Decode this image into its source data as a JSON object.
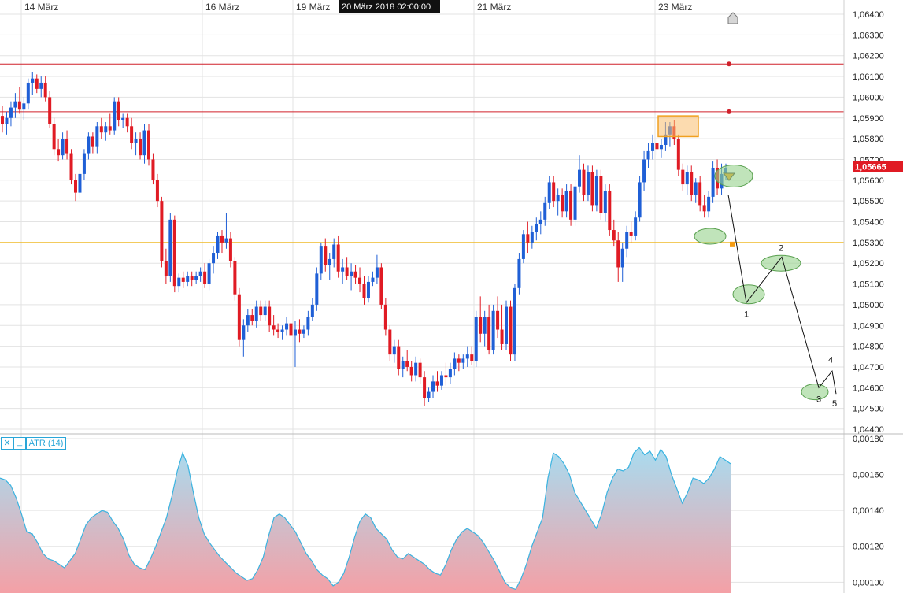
{
  "crosshair_label": "20 März 2018 02:00:00",
  "indicator": {
    "close_glyph": "✕",
    "minimize_glyph": "_",
    "label": "ATR (14)"
  },
  "icons": {
    "home": "home-icon",
    "alert": "alert-bell-icon"
  },
  "colors": {
    "up": "#1f5fd6",
    "down": "#e01b24",
    "grid": "#e3e3e3",
    "hline_red": "#d0202a",
    "hline_orange": "#f0b000",
    "price_tag": "#e01b24",
    "atr_line": "#3ab3e0",
    "atr_fill_top": "#a8dcf0",
    "atr_fill_bottom": "#f4a0a6",
    "wave_fill": "#9fd49a"
  },
  "chart_data": [
    {
      "type": "candlestick",
      "x_labels": [
        "14 März",
        "16 März",
        "19 März",
        "21 März",
        "23 März"
      ],
      "y_ticks": [
        "1,06400",
        "1,06300",
        "1,06200",
        "1,06100",
        "1,06000",
        "1,05900",
        "1,05800",
        "1,05700",
        "1,05600",
        "1,05500",
        "1,05400",
        "1,05300",
        "1,05200",
        "1,05100",
        "1,05000",
        "1,04900",
        "1,04800",
        "1,04700",
        "1,04600",
        "1,04500",
        "1,04400"
      ],
      "ylim": [
        1.044,
        1.064
      ],
      "last_price_label": "1,05665",
      "last_price": 1.05665,
      "horizontal_lines": [
        {
          "price": 1.0616,
          "color": "red"
        },
        {
          "price": 1.0593,
          "color": "red"
        },
        {
          "price": 1.053,
          "color": "orange"
        }
      ],
      "wave_labels": [
        "1",
        "2",
        "3",
        "4",
        "5"
      ],
      "ohlc": [
        [
          1.0591,
          1.0596,
          1.0583,
          1.0587
        ],
        [
          1.0587,
          1.0593,
          1.0582,
          1.059
        ],
        [
          1.059,
          1.0598,
          1.0586,
          1.0595
        ],
        [
          1.0595,
          1.0602,
          1.059,
          1.0598
        ],
        [
          1.0598,
          1.0605,
          1.0592,
          1.0594
        ],
        [
          1.0594,
          1.06,
          1.0589,
          1.0597
        ],
        [
          1.0597,
          1.0609,
          1.0594,
          1.0607
        ],
        [
          1.0607,
          1.0612,
          1.0601,
          1.0609
        ],
        [
          1.0609,
          1.0611,
          1.0602,
          1.0604
        ],
        [
          1.0604,
          1.061,
          1.06,
          1.0607
        ],
        [
          1.0607,
          1.061,
          1.0598,
          1.06
        ],
        [
          1.06,
          1.0603,
          1.0585,
          1.0587
        ],
        [
          1.0587,
          1.059,
          1.0572,
          1.0575
        ],
        [
          1.0575,
          1.058,
          1.0569,
          1.0572
        ],
        [
          1.0572,
          1.0583,
          1.057,
          1.058
        ],
        [
          1.058,
          1.0584,
          1.057,
          1.0573
        ],
        [
          1.0573,
          1.0575,
          1.0558,
          1.056
        ],
        [
          1.056,
          1.0563,
          1.055,
          1.0554
        ],
        [
          1.0554,
          1.0565,
          1.0551,
          1.0563
        ],
        [
          1.0563,
          1.0575,
          1.056,
          1.0573
        ],
        [
          1.0573,
          1.0583,
          1.057,
          1.0581
        ],
        [
          1.0581,
          1.0583,
          1.0573,
          1.0576
        ],
        [
          1.0576,
          1.0588,
          1.0573,
          1.0586
        ],
        [
          1.0586,
          1.059,
          1.058,
          1.0583
        ],
        [
          1.0583,
          1.0588,
          1.0579,
          1.0586
        ],
        [
          1.0586,
          1.0592,
          1.0582,
          1.0584
        ],
        [
          1.0584,
          1.06,
          1.0582,
          1.0598
        ],
        [
          1.0598,
          1.06,
          1.0586,
          1.0589
        ],
        [
          1.0589,
          1.0592,
          1.0585,
          1.059
        ],
        [
          1.059,
          1.0592,
          1.0583,
          1.0586
        ],
        [
          1.0586,
          1.059,
          1.0575,
          1.0578
        ],
        [
          1.0578,
          1.0583,
          1.0572,
          1.058
        ],
        [
          1.058,
          1.0583,
          1.057,
          1.0572
        ],
        [
          1.0572,
          1.0587,
          1.0568,
          1.0584
        ],
        [
          1.0584,
          1.0587,
          1.0567,
          1.057
        ],
        [
          1.057,
          1.0573,
          1.0558,
          1.056
        ],
        [
          1.056,
          1.0563,
          1.0547,
          1.055
        ],
        [
          1.055,
          1.0552,
          1.0518,
          1.0521
        ],
        [
          1.0521,
          1.0527,
          1.051,
          1.0514
        ],
        [
          1.0514,
          1.0544,
          1.0511,
          1.0541
        ],
        [
          1.0541,
          1.0543,
          1.0506,
          1.0509
        ],
        [
          1.0509,
          1.0515,
          1.0506,
          1.0513
        ],
        [
          1.0513,
          1.0516,
          1.0508,
          1.0511
        ],
        [
          1.0511,
          1.0516,
          1.0509,
          1.0514
        ],
        [
          1.0514,
          1.0516,
          1.0509,
          1.0512
        ],
        [
          1.0512,
          1.0516,
          1.051,
          1.0514
        ],
        [
          1.0514,
          1.0518,
          1.0511,
          1.0516
        ],
        [
          1.0516,
          1.052,
          1.0508,
          1.051
        ],
        [
          1.051,
          1.0522,
          1.0507,
          1.052
        ],
        [
          1.052,
          1.0528,
          1.0515,
          1.0525
        ],
        [
          1.0525,
          1.0535,
          1.0522,
          1.0533
        ],
        [
          1.0533,
          1.0536,
          1.0525,
          1.053
        ],
        [
          1.053,
          1.0544,
          1.0527,
          1.0532
        ],
        [
          1.0532,
          1.0535,
          1.0518,
          1.0521
        ],
        [
          1.0521,
          1.0523,
          1.0502,
          1.0505
        ],
        [
          1.0505,
          1.0508,
          1.048,
          1.0483
        ],
        [
          1.0483,
          1.0493,
          1.0475,
          1.049
        ],
        [
          1.049,
          1.0498,
          1.0487,
          1.0495
        ],
        [
          1.0495,
          1.0498,
          1.049,
          1.0492
        ],
        [
          1.0492,
          1.0502,
          1.0489,
          1.0499
        ],
        [
          1.0499,
          1.0502,
          1.0492,
          1.0495
        ],
        [
          1.0495,
          1.0502,
          1.0492,
          1.0499
        ],
        [
          1.0499,
          1.0502,
          1.0487,
          1.049
        ],
        [
          1.049,
          1.0495,
          1.0485,
          1.0488
        ],
        [
          1.0488,
          1.0491,
          1.0484,
          1.0487
        ],
        [
          1.0487,
          1.049,
          1.0483,
          1.0488
        ],
        [
          1.0488,
          1.0494,
          1.0485,
          1.0491
        ],
        [
          1.0491,
          1.0496,
          1.0482,
          1.0485
        ],
        [
          1.0485,
          1.0492,
          1.047,
          1.0488
        ],
        [
          1.0488,
          1.0493,
          1.0482,
          1.0486
        ],
        [
          1.0486,
          1.049,
          1.0484,
          1.0488
        ],
        [
          1.0488,
          1.0497,
          1.0485,
          1.0494
        ],
        [
          1.0494,
          1.0503,
          1.0492,
          1.05
        ],
        [
          1.05,
          1.0518,
          1.0497,
          1.0515
        ],
        [
          1.0515,
          1.053,
          1.0512,
          1.0528
        ],
        [
          1.0528,
          1.0532,
          1.0516,
          1.0519
        ],
        [
          1.0519,
          1.0525,
          1.0512,
          1.0522
        ],
        [
          1.0522,
          1.0532,
          1.0518,
          1.0529
        ],
        [
          1.0529,
          1.0533,
          1.0513,
          1.0516
        ],
        [
          1.0516,
          1.0522,
          1.051,
          1.0518
        ],
        [
          1.0518,
          1.0523,
          1.0512,
          1.0514
        ],
        [
          1.0514,
          1.052,
          1.0507,
          1.0516
        ],
        [
          1.0516,
          1.0519,
          1.051,
          1.0513
        ],
        [
          1.0513,
          1.0518,
          1.0506,
          1.051
        ],
        [
          1.051,
          1.0514,
          1.05,
          1.0503
        ],
        [
          1.0503,
          1.0514,
          1.0501,
          1.0511
        ],
        [
          1.0511,
          1.0516,
          1.0509,
          1.0513
        ],
        [
          1.0513,
          1.0524,
          1.051,
          1.0518
        ],
        [
          1.0518,
          1.052,
          1.0498,
          1.05
        ],
        [
          1.05,
          1.0503,
          1.0485,
          1.0488
        ],
        [
          1.0488,
          1.049,
          1.0473,
          1.0476
        ],
        [
          1.0476,
          1.0483,
          1.0472,
          1.048
        ],
        [
          1.048,
          1.0483,
          1.0466,
          1.0469
        ],
        [
          1.0469,
          1.0475,
          1.0465,
          1.0473
        ],
        [
          1.0473,
          1.0478,
          1.0468,
          1.047
        ],
        [
          1.047,
          1.0473,
          1.0463,
          1.0466
        ],
        [
          1.0466,
          1.0475,
          1.0463,
          1.0472
        ],
        [
          1.0472,
          1.0474,
          1.0462,
          1.0465
        ],
        [
          1.0465,
          1.0468,
          1.0451,
          1.0455
        ],
        [
          1.0455,
          1.046,
          1.0453,
          1.0458
        ],
        [
          1.0458,
          1.0466,
          1.0455,
          1.0463
        ],
        [
          1.0463,
          1.0468,
          1.0458,
          1.0461
        ],
        [
          1.0461,
          1.0468,
          1.0459,
          1.0466
        ],
        [
          1.0466,
          1.0472,
          1.0461,
          1.0465
        ],
        [
          1.0465,
          1.0472,
          1.0462,
          1.0469
        ],
        [
          1.0469,
          1.0477,
          1.0466,
          1.0474
        ],
        [
          1.0474,
          1.0476,
          1.0468,
          1.0472
        ],
        [
          1.0472,
          1.0476,
          1.0469,
          1.0474
        ],
        [
          1.0474,
          1.048,
          1.047,
          1.0476
        ],
        [
          1.0476,
          1.048,
          1.0471,
          1.0473
        ],
        [
          1.0473,
          1.0497,
          1.047,
          1.0494
        ],
        [
          1.0494,
          1.0504,
          1.0482,
          1.0486
        ],
        [
          1.0486,
          1.0497,
          1.048,
          1.0494
        ],
        [
          1.0494,
          1.05,
          1.0476,
          1.0478
        ],
        [
          1.0478,
          1.05,
          1.0476,
          1.0497
        ],
        [
          1.0497,
          1.0504,
          1.0484,
          1.0488
        ],
        [
          1.0488,
          1.05,
          1.0478,
          1.0481
        ],
        [
          1.0481,
          1.0502,
          1.0478,
          1.0499
        ],
        [
          1.0499,
          1.0502,
          1.0473,
          1.0476
        ],
        [
          1.0476,
          1.051,
          1.0473,
          1.0508
        ],
        [
          1.0508,
          1.0525,
          1.0505,
          1.0522
        ],
        [
          1.0522,
          1.0536,
          1.052,
          1.0534
        ],
        [
          1.0534,
          1.054,
          1.0525,
          1.053
        ],
        [
          1.053,
          1.0538,
          1.0527,
          1.0535
        ],
        [
          1.0535,
          1.0542,
          1.0531,
          1.0539
        ],
        [
          1.0539,
          1.0545,
          1.0534,
          1.0541
        ],
        [
          1.0541,
          1.0552,
          1.0538,
          1.0549
        ],
        [
          1.0549,
          1.0562,
          1.0546,
          1.0559
        ],
        [
          1.0559,
          1.0562,
          1.0547,
          1.055
        ],
        [
          1.055,
          1.0556,
          1.0543,
          1.0553
        ],
        [
          1.0553,
          1.0556,
          1.0542,
          1.0545
        ],
        [
          1.0545,
          1.0558,
          1.0542,
          1.0555
        ],
        [
          1.0555,
          1.0558,
          1.0538,
          1.0541
        ],
        [
          1.0541,
          1.056,
          1.0538,
          1.0557
        ],
        [
          1.0557,
          1.0572,
          1.0554,
          1.0565
        ],
        [
          1.0565,
          1.0568,
          1.055,
          1.0553
        ],
        [
          1.0553,
          1.0567,
          1.055,
          1.0564
        ],
        [
          1.0564,
          1.0567,
          1.0545,
          1.0548
        ],
        [
          1.0548,
          1.0565,
          1.0545,
          1.0562
        ],
        [
          1.0562,
          1.0565,
          1.0541,
          1.0544
        ],
        [
          1.0544,
          1.0558,
          1.054,
          1.0555
        ],
        [
          1.0555,
          1.0558,
          1.0533,
          1.0536
        ],
        [
          1.0536,
          1.0541,
          1.0528,
          1.0531
        ],
        [
          1.0531,
          1.0535,
          1.0511,
          1.0518
        ],
        [
          1.0518,
          1.053,
          1.0511,
          1.0527
        ],
        [
          1.0527,
          1.0538,
          1.0523,
          1.0535
        ],
        [
          1.0535,
          1.054,
          1.053,
          1.0533
        ],
        [
          1.0533,
          1.0545,
          1.0531,
          1.0542
        ],
        [
          1.0542,
          1.0562,
          1.054,
          1.0559
        ],
        [
          1.0559,
          1.0574,
          1.0555,
          1.057
        ],
        [
          1.057,
          1.0578,
          1.0566,
          1.0574
        ],
        [
          1.0574,
          1.0582,
          1.057,
          1.0578
        ],
        [
          1.0578,
          1.0581,
          1.0572,
          1.0575
        ],
        [
          1.0575,
          1.058,
          1.0571,
          1.0577
        ],
        [
          1.0577,
          1.0588,
          1.0574,
          1.0582
        ],
        [
          1.0582,
          1.0588,
          1.0576,
          1.0586
        ],
        [
          1.0586,
          1.0589,
          1.0577,
          1.058
        ],
        [
          1.058,
          1.0582,
          1.0562,
          1.0565
        ],
        [
          1.0565,
          1.0568,
          1.0555,
          1.0558
        ],
        [
          1.0558,
          1.0567,
          1.0553,
          1.0564
        ],
        [
          1.0564,
          1.0567,
          1.055,
          1.0553
        ],
        [
          1.0553,
          1.0561,
          1.0549,
          1.0559
        ],
        [
          1.0559,
          1.0562,
          1.0545,
          1.0548
        ],
        [
          1.0548,
          1.0553,
          1.0542,
          1.0545
        ],
        [
          1.0545,
          1.0555,
          1.0542,
          1.0552
        ],
        [
          1.0552,
          1.0569,
          1.0549,
          1.0566
        ],
        [
          1.0566,
          1.057,
          1.0553,
          1.0556
        ],
        [
          1.0556,
          1.0568,
          1.0553,
          1.0563
        ],
        [
          1.0563,
          1.0568,
          1.056,
          1.0566
        ]
      ]
    },
    {
      "type": "area",
      "legend": [
        "ATR (14)"
      ],
      "y_ticks": [
        "0,00180",
        "0,00160",
        "0,00140",
        "0,00120",
        "0,00100"
      ],
      "ylim": [
        0.00094,
        0.0018
      ],
      "values": [
        0.00158,
        0.00157,
        0.00154,
        0.00147,
        0.00138,
        0.00128,
        0.00127,
        0.00122,
        0.00116,
        0.00113,
        0.00112,
        0.0011,
        0.00108,
        0.00112,
        0.00116,
        0.00124,
        0.00132,
        0.00136,
        0.00138,
        0.0014,
        0.00139,
        0.00134,
        0.0013,
        0.00124,
        0.00115,
        0.0011,
        0.00108,
        0.00107,
        0.00113,
        0.0012,
        0.00128,
        0.00136,
        0.00148,
        0.00162,
        0.00172,
        0.00165,
        0.0015,
        0.00136,
        0.00127,
        0.00122,
        0.00118,
        0.00114,
        0.00111,
        0.00108,
        0.00105,
        0.00103,
        0.00101,
        0.00102,
        0.00107,
        0.00114,
        0.00126,
        0.00136,
        0.00138,
        0.00136,
        0.00132,
        0.00128,
        0.00122,
        0.00116,
        0.00112,
        0.00107,
        0.00104,
        0.00102,
        0.00098,
        0.001,
        0.00105,
        0.00114,
        0.00125,
        0.00134,
        0.00138,
        0.00136,
        0.0013,
        0.00127,
        0.00124,
        0.00118,
        0.00114,
        0.00113,
        0.00116,
        0.00114,
        0.00112,
        0.0011,
        0.00107,
        0.00105,
        0.00104,
        0.0011,
        0.00118,
        0.00124,
        0.00128,
        0.0013,
        0.00128,
        0.00126,
        0.00122,
        0.00117,
        0.00112,
        0.00106,
        0.001,
        0.00097,
        0.00096,
        0.00102,
        0.0011,
        0.0012,
        0.00128,
        0.00136,
        0.00158,
        0.00172,
        0.0017,
        0.00166,
        0.0016,
        0.0015,
        0.00145,
        0.0014,
        0.00135,
        0.0013,
        0.00138,
        0.0015,
        0.00158,
        0.00163,
        0.00162,
        0.00164,
        0.00172,
        0.00175,
        0.00171,
        0.00173,
        0.00168,
        0.00174,
        0.0017,
        0.0016,
        0.00152,
        0.00144,
        0.0015,
        0.00158,
        0.00157,
        0.00155,
        0.00158,
        0.00163,
        0.0017,
        0.00168,
        0.00166
      ]
    }
  ]
}
